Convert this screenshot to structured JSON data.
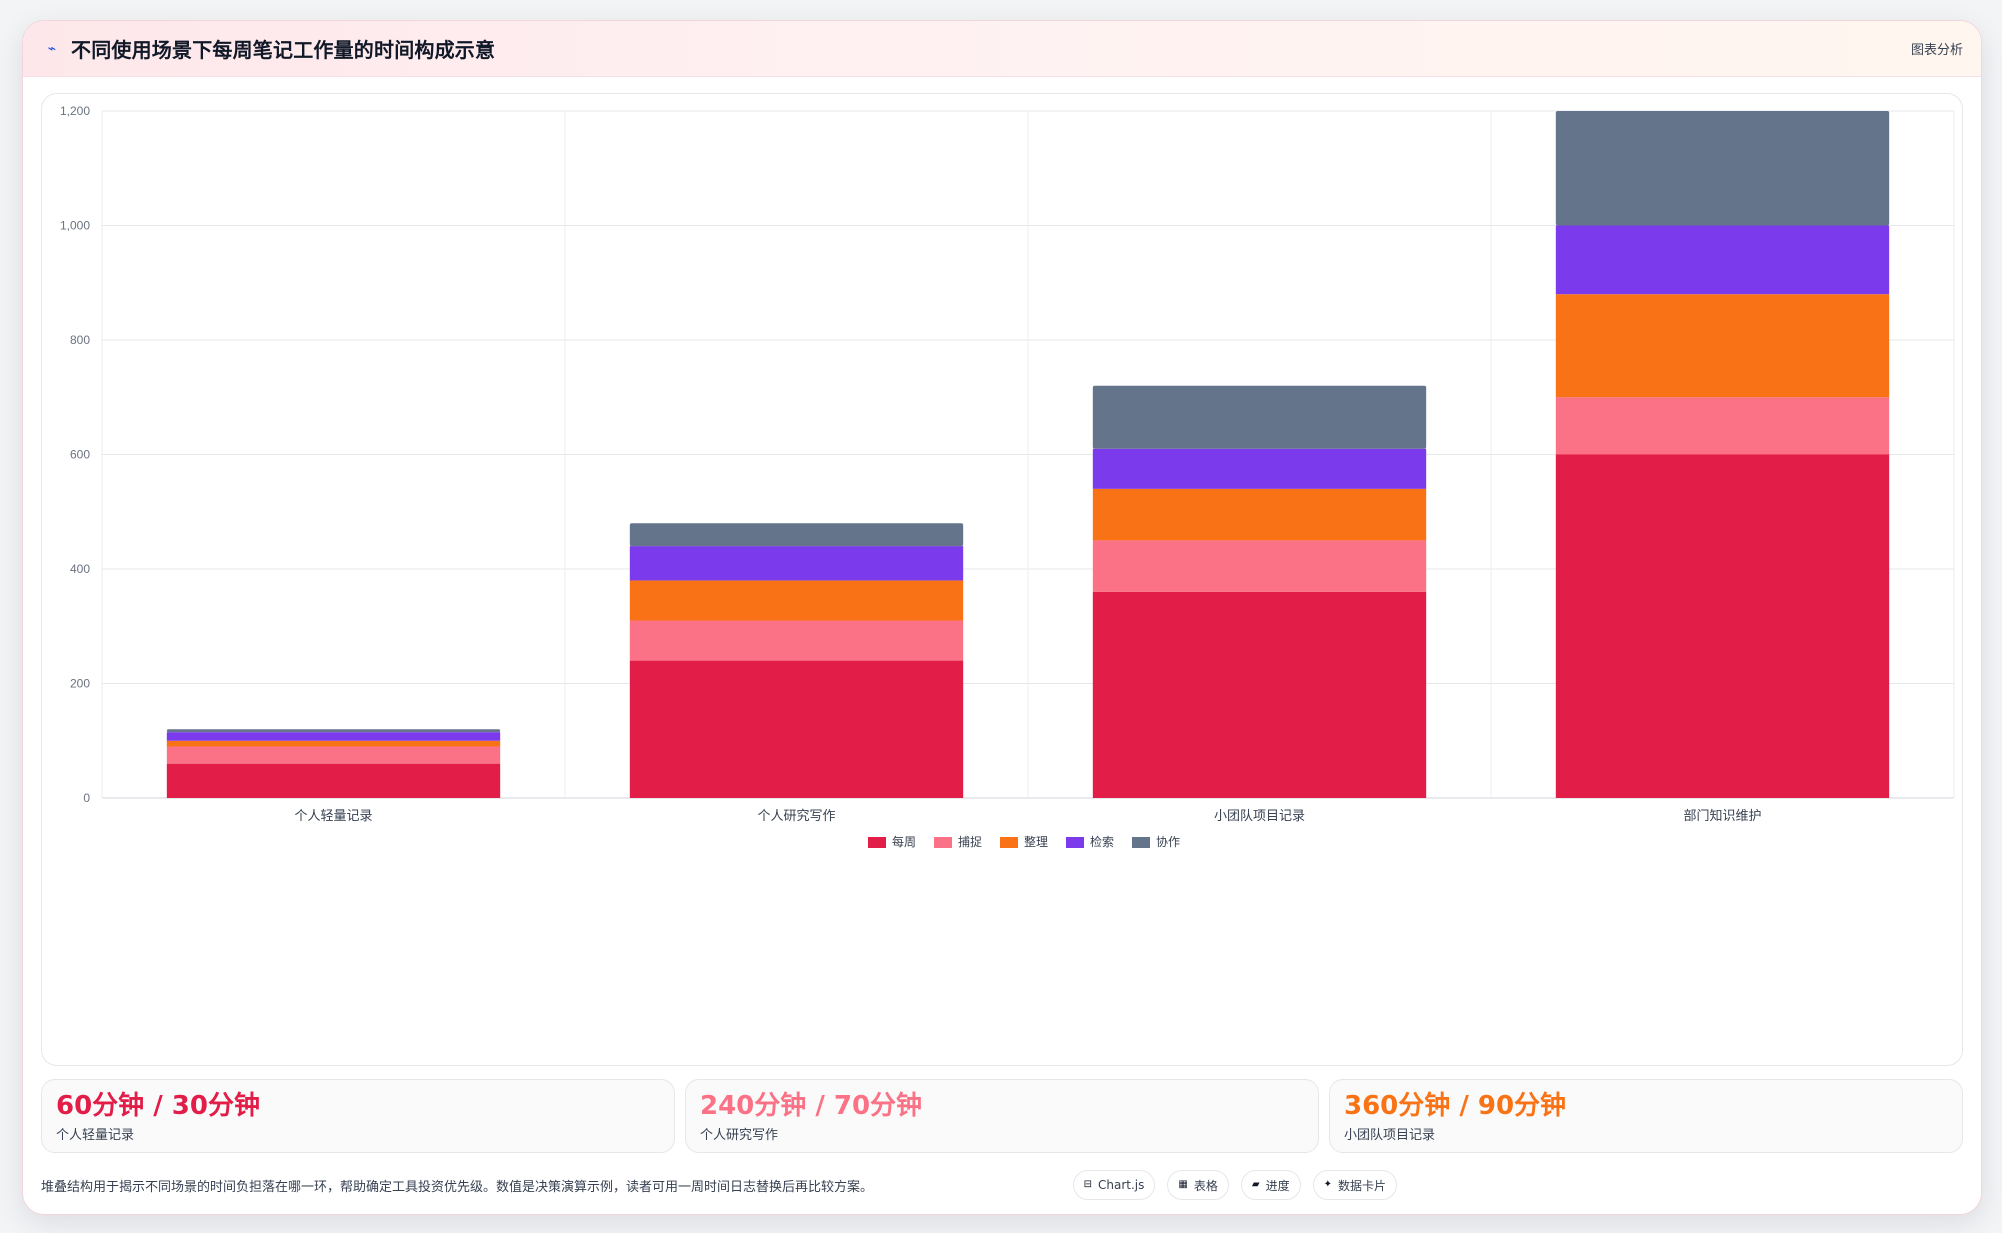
{
  "header": {
    "icon": "sparkline-icon",
    "title": "不同使用场景下每周笔记工作量的时间构成示意",
    "action_label": "图表分析"
  },
  "chart_data": {
    "type": "bar",
    "stacked": true,
    "categories": [
      "个人轻量记录",
      "个人研究写作",
      "小团队项目记录",
      "部门知识维护"
    ],
    "series": [
      {
        "name": "每周",
        "color": "#e11d48",
        "values": [
          60,
          240,
          360,
          600
        ]
      },
      {
        "name": "捕捉",
        "color": "#fb7185",
        "values": [
          30,
          70,
          90,
          100
        ]
      },
      {
        "name": "整理",
        "color": "#f97316",
        "values": [
          10,
          70,
          90,
          180
        ]
      },
      {
        "name": "检索",
        "color": "#7c3aed",
        "values": [
          15,
          60,
          70,
          120
        ]
      },
      {
        "name": "协作",
        "color": "#64748b",
        "values": [
          5,
          40,
          110,
          200
        ]
      }
    ],
    "ylim": [
      0,
      1200
    ],
    "y_ticks": [
      "0",
      "200",
      "400",
      "600",
      "800",
      "1,000",
      "1,200"
    ],
    "grid": true,
    "legend_position": "bottom"
  },
  "stats": [
    {
      "value": "60分钟 / 30分钟",
      "label": "个人轻量记录",
      "color": "#e11d48"
    },
    {
      "value": "240分钟 / 70分钟",
      "label": "个人研究写作",
      "color": "#fb7185"
    },
    {
      "value": "360分钟 / 90分钟",
      "label": "小团队项目记录",
      "color": "#f97316"
    }
  ],
  "footer": {
    "note": "堆叠结构用于揭示不同场景的时间负担落在哪一环，帮助确定工具投资优先级。数值是决策演算示例，读者可用一周时间日志替换后再比较方案。",
    "chips": [
      {
        "icon": "chart-icon",
        "glyph": "⊟",
        "label": "Chart.js"
      },
      {
        "icon": "table-icon",
        "glyph": "▦",
        "label": "表格"
      },
      {
        "icon": "progress-icon",
        "glyph": "▰",
        "label": "进度"
      },
      {
        "icon": "card-icon",
        "glyph": "✦",
        "label": "数据卡片"
      }
    ]
  }
}
